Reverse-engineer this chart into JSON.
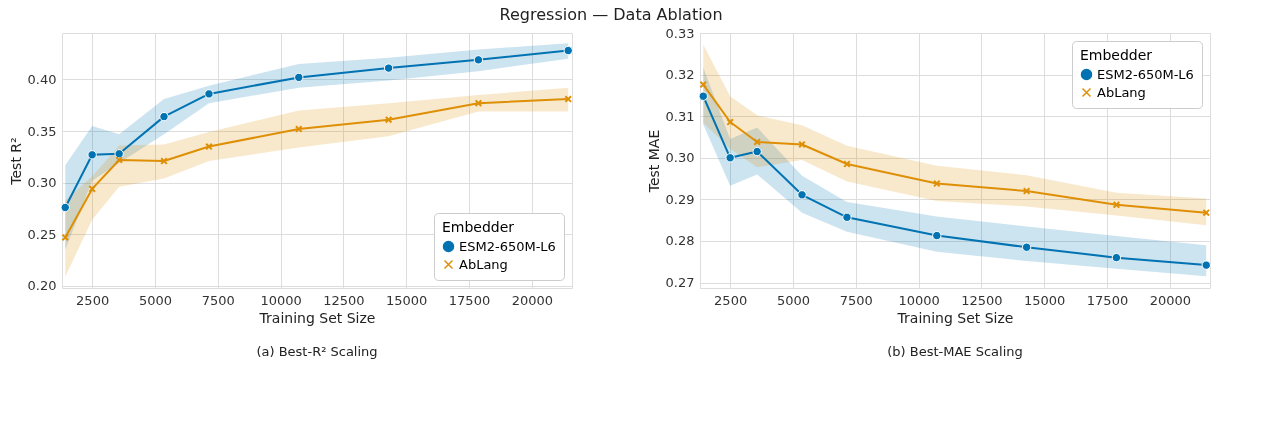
{
  "chart_data": [
    {
      "type": "line",
      "title": "Regression — Data Ablation",
      "xlabel": "Training Set Size",
      "ylabel": "Test R²",
      "legend_title": "Embedder",
      "annotations": [
        "(a) Best-R² Scaling"
      ],
      "x": [
        1430,
        2500,
        3575,
        5360,
        7150,
        10725,
        14300,
        17875,
        21450
      ],
      "series": [
        {
          "name": "ESM2-650M-L6",
          "color": "#0173b2",
          "marker": "circle",
          "values": [
            0.276,
            0.327,
            0.328,
            0.364,
            0.386,
            0.402,
            0.411,
            0.419,
            0.428
          ],
          "lower": [
            0.235,
            0.302,
            0.319,
            0.347,
            0.377,
            0.392,
            0.399,
            0.408,
            0.42
          ],
          "upper": [
            0.317,
            0.355,
            0.347,
            0.381,
            0.394,
            0.415,
            0.421,
            0.429,
            0.435
          ]
        },
        {
          "name": "AbLang",
          "color": "#de8f05",
          "marker": "cross",
          "values": [
            0.247,
            0.294,
            0.322,
            0.321,
            0.335,
            0.352,
            0.361,
            0.377,
            0.381
          ],
          "lower": [
            0.209,
            0.264,
            0.296,
            0.304,
            0.321,
            0.334,
            0.345,
            0.369,
            0.369
          ],
          "upper": [
            0.283,
            0.306,
            0.336,
            0.337,
            0.349,
            0.37,
            0.377,
            0.385,
            0.392
          ]
        }
      ],
      "xlim": [
        1300,
        21600
      ],
      "xticks": [
        2500,
        5000,
        7500,
        10000,
        12500,
        15000,
        17500,
        20000
      ],
      "ylim": [
        0.198,
        0.445
      ],
      "yticks": [
        {
          "value": 0.2,
          "label": "0.20"
        },
        0.25,
        {
          "value": 0.3,
          "label": "0.30"
        },
        0.35,
        {
          "value": 0.4,
          "label": "0.40"
        }
      ],
      "grid": true,
      "legend": "bottom right"
    },
    {
      "type": "line",
      "xlabel": "Training Set Size",
      "ylabel": "Test MAE",
      "legend_title": "Embedder",
      "annotations": [
        "(b) Best-MAE Scaling"
      ],
      "x": [
        1430,
        2500,
        3575,
        5360,
        7150,
        10725,
        14300,
        17875,
        21450
      ],
      "series": [
        {
          "name": "ESM2-650M-L6",
          "color": "#0173b2",
          "marker": "circle",
          "values": [
            0.3148,
            0.3,
            0.3015,
            0.2911,
            0.2857,
            0.2813,
            0.2785,
            0.276,
            0.2742
          ],
          "lower": [
            0.308,
            0.2933,
            0.296,
            0.2868,
            0.2822,
            0.2774,
            0.2752,
            0.2733,
            0.2715
          ],
          "upper": [
            0.3217,
            0.3045,
            0.3073,
            0.2957,
            0.2894,
            0.2859,
            0.2835,
            0.2812,
            0.279
          ]
        },
        {
          "name": "AbLang",
          "color": "#de8f05",
          "marker": "cross",
          "values": [
            0.3176,
            0.3086,
            0.3038,
            0.3032,
            0.2985,
            0.2938,
            0.292,
            0.2887,
            0.2868
          ],
          "lower": [
            0.3084,
            0.3022,
            0.2977,
            0.2995,
            0.2943,
            0.2896,
            0.2883,
            0.2861,
            0.2838
          ],
          "upper": [
            0.3272,
            0.3148,
            0.3102,
            0.3078,
            0.3029,
            0.2981,
            0.2958,
            0.2916,
            0.2902
          ]
        }
      ],
      "xlim": [
        1300,
        21600
      ],
      "xticks": [
        2500,
        5000,
        7500,
        10000,
        12500,
        15000,
        17500,
        20000
      ],
      "ylim": [
        0.2687,
        0.33
      ],
      "yticks": [
        0.27,
        0.28,
        0.29,
        {
          "value": 0.3,
          "label": "0.30"
        },
        0.31,
        0.32,
        0.33
      ],
      "grid": true,
      "legend": "top right"
    }
  ]
}
